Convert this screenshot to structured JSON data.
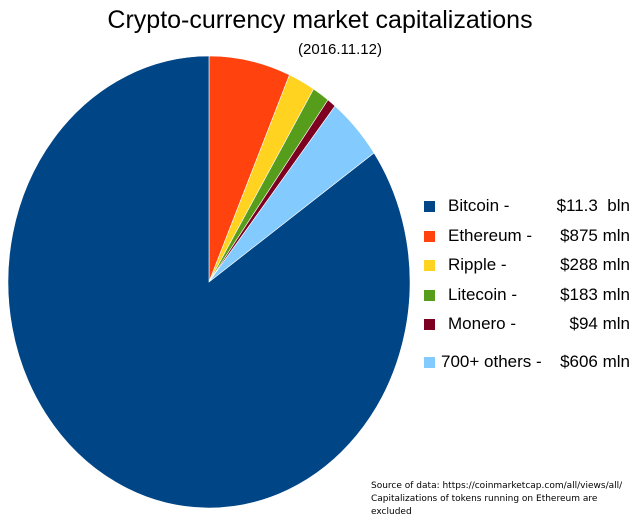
{
  "chart_data": {
    "type": "pie",
    "title": "Crypto-currency market capitalizations",
    "subtitle": "(2016.11.12)",
    "unit": "mln USD",
    "start": "top, clockwise",
    "slices": [
      {
        "name": "Ethereum",
        "value": 875,
        "label": "$875 mln",
        "color": "#ff420e"
      },
      {
        "name": "Ripple",
        "value": 288,
        "label": "$288 mln",
        "color": "#ffd320"
      },
      {
        "name": "Litecoin",
        "value": 183,
        "label": "$183 mln",
        "color": "#579d1c"
      },
      {
        "name": "Monero",
        "value": 94,
        "label": "$94 mln",
        "color": "#7e0021"
      },
      {
        "name": "700+ others",
        "value": 606,
        "label": "$606 mln",
        "color": "#83caff"
      },
      {
        "name": "Bitcoin",
        "value": 11300,
        "label": "$11.3  bln",
        "color": "#004586"
      }
    ],
    "legend": [
      {
        "name": "Bitcoin -",
        "value": "$11.3  bln",
        "color": "#004586"
      },
      {
        "name": "Ethereum -",
        "value": "$875 mln",
        "color": "#ff420e"
      },
      {
        "name": "Ripple -",
        "value": "$288 mln",
        "color": "#ffd320"
      },
      {
        "name": "Litecoin -",
        "value": "$183 mln",
        "color": "#579d1c"
      },
      {
        "name": "Monero -",
        "value": "$94 mln",
        "color": "#7e0021"
      },
      {
        "name": "700+ others -",
        "value": "$606 mln",
        "color": "#83caff"
      }
    ],
    "legend_position": "right",
    "notes": [
      "Source of data: https://coinmarketcap.com/all/views/all/",
      "Capitalizations of tokens running on Ethereum are excluded"
    ]
  }
}
